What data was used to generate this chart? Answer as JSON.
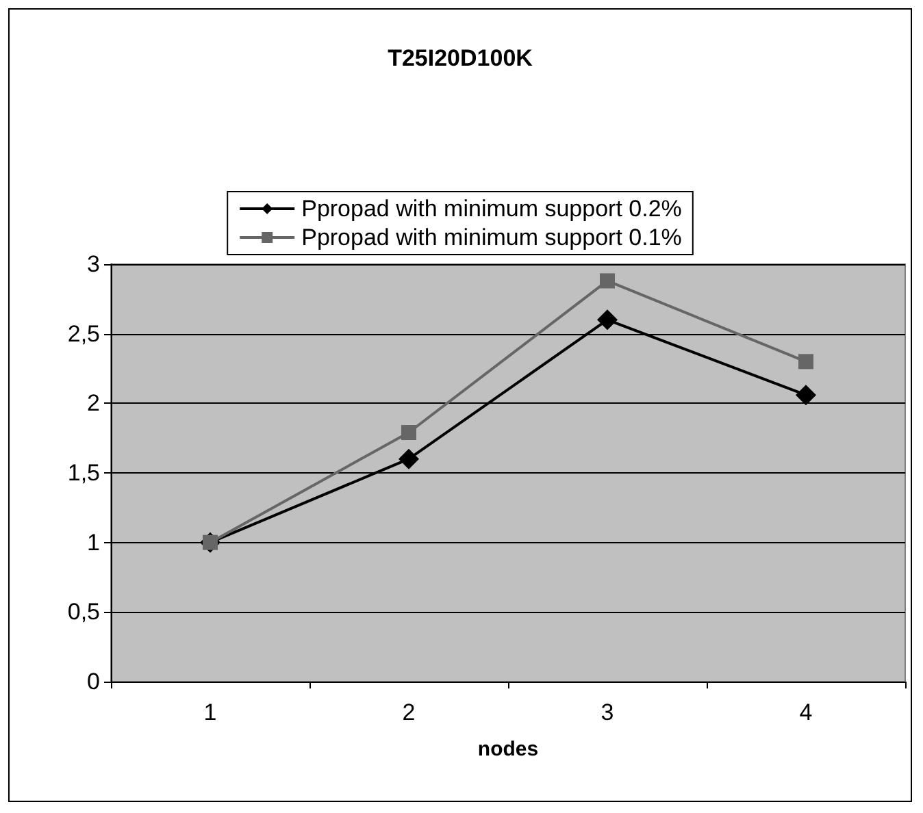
{
  "chart_data": {
    "type": "line",
    "title": "T25I20D100K",
    "xlabel": "nodes",
    "categories": [
      "1",
      "2",
      "3",
      "4"
    ],
    "series": [
      {
        "name": "Ppropad with minimum support 0.2%",
        "color": "#000000",
        "marker": "diamond",
        "values": [
          1,
          1.6,
          2.6,
          2.06
        ]
      },
      {
        "name": "Ppropad with minimum support 0.1%",
        "color": "#666666",
        "marker": "square",
        "values": [
          1,
          1.79,
          2.88,
          2.3
        ]
      }
    ],
    "ylim": [
      0,
      3
    ],
    "yticks": [
      0,
      {
        "value": 0.5,
        "label": "0,5"
      },
      1,
      {
        "value": 1.5,
        "label": "1,5"
      },
      2,
      {
        "value": 2.5,
        "label": "2,5"
      },
      3
    ],
    "grid": "y",
    "legend": "top"
  }
}
